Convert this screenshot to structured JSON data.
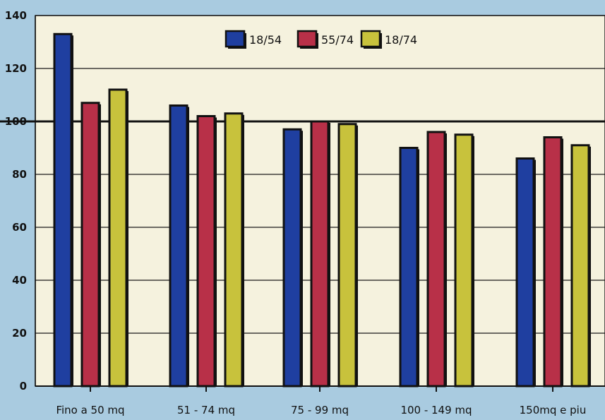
{
  "chart_data": {
    "type": "bar",
    "categories": [
      "Fino a 50 mq",
      "51 - 74 mq",
      "75 - 99 mq",
      "100 - 149 mq",
      "150mq e piu"
    ],
    "series": [
      {
        "name": "18/54",
        "color": "#1f3fa0",
        "values": [
          133,
          106,
          97,
          90,
          86
        ]
      },
      {
        "name": "55/74",
        "color": "#b83048",
        "values": [
          107,
          102,
          100,
          96,
          94
        ]
      },
      {
        "name": "18/74",
        "color": "#c8c23c",
        "values": [
          112,
          103,
          99,
          95,
          91
        ]
      }
    ],
    "ylim": [
      0,
      140
    ],
    "yticks": [
      0,
      20,
      40,
      60,
      80,
      100,
      120,
      140
    ],
    "reference_line": 100,
    "grid": true,
    "legend_position": "top-center",
    "plot_background": "#f5f2de"
  }
}
